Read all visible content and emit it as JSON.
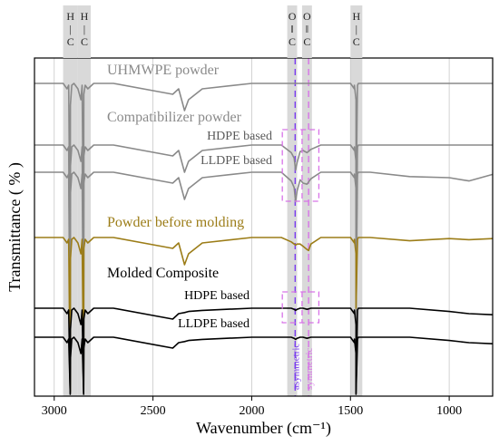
{
  "chart_data": {
    "type": "line",
    "xlabel": "Wavenumber (cm⁻¹)",
    "ylabel": "Transmittance ( % )",
    "xlim": [
      3100,
      780
    ],
    "x_reversed": true,
    "x_ticks": [
      3000,
      2500,
      2000,
      1500,
      1000
    ],
    "grid": true,
    "shaded_bands": [
      {
        "range": [
          2955,
          2880
        ],
        "label": [
          "H",
          "|",
          "C"
        ]
      },
      {
        "range": [
          2880,
          2815
        ],
        "label": [
          "H",
          "|",
          "C"
        ]
      },
      {
        "range": [
          1820,
          1770
        ],
        "label": [
          "O",
          "‖",
          "C"
        ]
      },
      {
        "range": [
          1745,
          1695
        ],
        "label": [
          "O",
          "‖",
          "C"
        ]
      },
      {
        "range": [
          1500,
          1440
        ],
        "label": [
          "H",
          "|",
          "C"
        ]
      }
    ],
    "reference_lines": [
      {
        "x": 1780,
        "label": "asymmetric",
        "color": "#7a3cf0"
      },
      {
        "x": 1712,
        "label": "symmetric",
        "color": "#d873e8"
      }
    ],
    "group_labels": [
      {
        "text": "UHMWPE powder",
        "color": "#8a8a8a"
      },
      {
        "text": "Compatibilizer powder",
        "color": "#8a8a8a"
      },
      {
        "text": "HDPE based",
        "color": "#5a5a5a"
      },
      {
        "text": "LLDPE based",
        "color": "#5a5a5a"
      },
      {
        "text": "Powder before molding",
        "color": "#9c7d18"
      },
      {
        "text": "Molded Composite",
        "color": "#000000"
      },
      {
        "text": "HDPE based",
        "color": "#000000"
      },
      {
        "text": "LLDPE based",
        "color": "#000000"
      }
    ],
    "series": [
      {
        "id": "uhmwpe",
        "color": "#8a8a8a",
        "x": [
          3100,
          3000,
          2955,
          2935,
          2918,
          2900,
          2880,
          2865,
          2850,
          2830,
          2800,
          2700,
          2400,
          2370,
          2340,
          2320,
          2250,
          2000,
          1800,
          1600,
          1500,
          1480,
          1472,
          1465,
          1460,
          1440,
          1400,
          1200,
          1000,
          900,
          780
        ],
        "y": [
          100.0,
          100.0,
          100.0,
          99.5,
          98.0,
          100.0,
          99.5,
          98.5,
          99.0,
          99.5,
          100.0,
          100.0,
          99.0,
          99.5,
          97.5,
          98.5,
          99.5,
          100.0,
          100.0,
          100.0,
          100.0,
          99.5,
          98.5,
          99.2,
          100.0,
          100.0,
          100.0,
          100.0,
          100.0,
          100.0,
          100.0
        ]
      },
      {
        "id": "compat-hdpe",
        "color": "#8a8a8a",
        "x": [
          3100,
          3000,
          2955,
          2935,
          2918,
          2900,
          2880,
          2865,
          2850,
          2830,
          2800,
          2700,
          2400,
          2370,
          2340,
          2320,
          2250,
          2000,
          1850,
          1800,
          1785,
          1778,
          1770,
          1755,
          1740,
          1720,
          1700,
          1650,
          1600,
          1500,
          1480,
          1472,
          1465,
          1460,
          1440,
          1400,
          1200,
          1000,
          900,
          780
        ],
        "y": [
          100.0,
          100.0,
          100.0,
          99.5,
          98.0,
          100.0,
          99.5,
          98.5,
          99.0,
          99.5,
          100.0,
          100.0,
          99.0,
          99.5,
          97.5,
          98.5,
          99.5,
          100.0,
          100.0,
          99.3,
          98.8,
          97.7,
          98.4,
          99.4,
          99.5,
          99.3,
          99.6,
          100.0,
          100.0,
          100.0,
          99.5,
          98.5,
          99.2,
          100.0,
          100.0,
          100.0,
          100.0,
          100.0,
          100.0,
          100.0
        ]
      },
      {
        "id": "compat-lldpe",
        "color": "#8a8a8a",
        "x": [
          3100,
          3000,
          2955,
          2935,
          2918,
          2900,
          2880,
          2865,
          2850,
          2830,
          2800,
          2700,
          2400,
          2370,
          2340,
          2320,
          2250,
          2000,
          1850,
          1800,
          1785,
          1778,
          1770,
          1755,
          1740,
          1720,
          1700,
          1650,
          1600,
          1500,
          1480,
          1472,
          1465,
          1460,
          1440,
          1400,
          1200,
          1000,
          900,
          780
        ],
        "y": [
          100.0,
          100.0,
          100.0,
          99.5,
          98.0,
          100.0,
          99.5,
          98.5,
          99.0,
          99.5,
          100.0,
          100.0,
          99.0,
          99.5,
          97.5,
          98.5,
          99.5,
          100.0,
          100.0,
          99.2,
          98.6,
          97.3,
          98.3,
          99.3,
          99.0,
          98.9,
          99.4,
          100.0,
          100.0,
          100.0,
          99.5,
          98.5,
          99.2,
          100.0,
          100.0,
          100.0,
          99.6,
          99.5,
          99.2,
          99.8
        ]
      },
      {
        "id": "powder-before",
        "color": "#9c7d18",
        "x": [
          3100,
          3000,
          2955,
          2935,
          2918,
          2900,
          2880,
          2865,
          2850,
          2830,
          2800,
          2700,
          2400,
          2370,
          2340,
          2320,
          2250,
          2000,
          1850,
          1800,
          1785,
          1778,
          1770,
          1755,
          1740,
          1720,
          1712,
          1700,
          1650,
          1600,
          1500,
          1480,
          1472,
          1465,
          1460,
          1440,
          1400,
          1200,
          1000,
          900,
          780
        ],
        "y": [
          100.0,
          100.0,
          100.0,
          99.5,
          98.0,
          100.0,
          99.5,
          98.5,
          99.0,
          99.5,
          100.0,
          100.0,
          99.0,
          99.5,
          97.5,
          98.5,
          99.5,
          100.0,
          100.0,
          99.6,
          99.4,
          99.3,
          99.4,
          99.4,
          99.2,
          98.9,
          98.8,
          99.4,
          100.0,
          100.0,
          100.0,
          99.5,
          98.5,
          99.2,
          100.0,
          100.0,
          100.0,
          99.7,
          99.9,
          99.8,
          99.9
        ]
      },
      {
        "id": "molded-hdpe",
        "color": "#000000",
        "x": [
          3100,
          3000,
          2955,
          2935,
          2918,
          2900,
          2880,
          2865,
          2850,
          2830,
          2800,
          2700,
          2400,
          2370,
          2340,
          2320,
          2250,
          2000,
          1850,
          1800,
          1785,
          1778,
          1770,
          1755,
          1740,
          1720,
          1700,
          1650,
          1600,
          1500,
          1480,
          1472,
          1465,
          1460,
          1440,
          1400,
          1200,
          1000,
          900,
          780
        ],
        "y": [
          100.0,
          100.0,
          100.0,
          99.5,
          98.0,
          100.0,
          99.5,
          98.5,
          99.0,
          99.5,
          100.0,
          100.0,
          99.0,
          99.5,
          99.6,
          99.7,
          99.8,
          100.0,
          100.0,
          100.0,
          99.9,
          99.8,
          99.9,
          100.0,
          100.0,
          99.9,
          100.0,
          100.0,
          100.0,
          100.0,
          99.5,
          98.5,
          99.2,
          100.0,
          100.0,
          100.0,
          100.0,
          99.7,
          99.5,
          99.4
        ]
      },
      {
        "id": "molded-lldpe",
        "color": "#000000",
        "x": [
          3100,
          3000,
          2955,
          2935,
          2918,
          2900,
          2880,
          2865,
          2850,
          2830,
          2800,
          2700,
          2400,
          2370,
          2340,
          2320,
          2250,
          2000,
          1850,
          1800,
          1785,
          1778,
          1770,
          1755,
          1740,
          1720,
          1700,
          1650,
          1600,
          1500,
          1480,
          1472,
          1465,
          1460,
          1440,
          1400,
          1200,
          1000,
          900,
          780
        ],
        "y": [
          100.0,
          100.0,
          100.0,
          99.5,
          98.0,
          100.0,
          99.5,
          98.5,
          99.0,
          99.5,
          100.0,
          100.0,
          99.0,
          99.5,
          99.6,
          99.7,
          99.8,
          100.0,
          100.0,
          100.0,
          99.9,
          99.8,
          99.9,
          100.0,
          100.0,
          99.9,
          100.0,
          100.0,
          100.0,
          100.0,
          99.5,
          98.5,
          99.2,
          100.0,
          100.0,
          100.0,
          100.0,
          99.7,
          99.5,
          99.4
        ]
      }
    ]
  }
}
